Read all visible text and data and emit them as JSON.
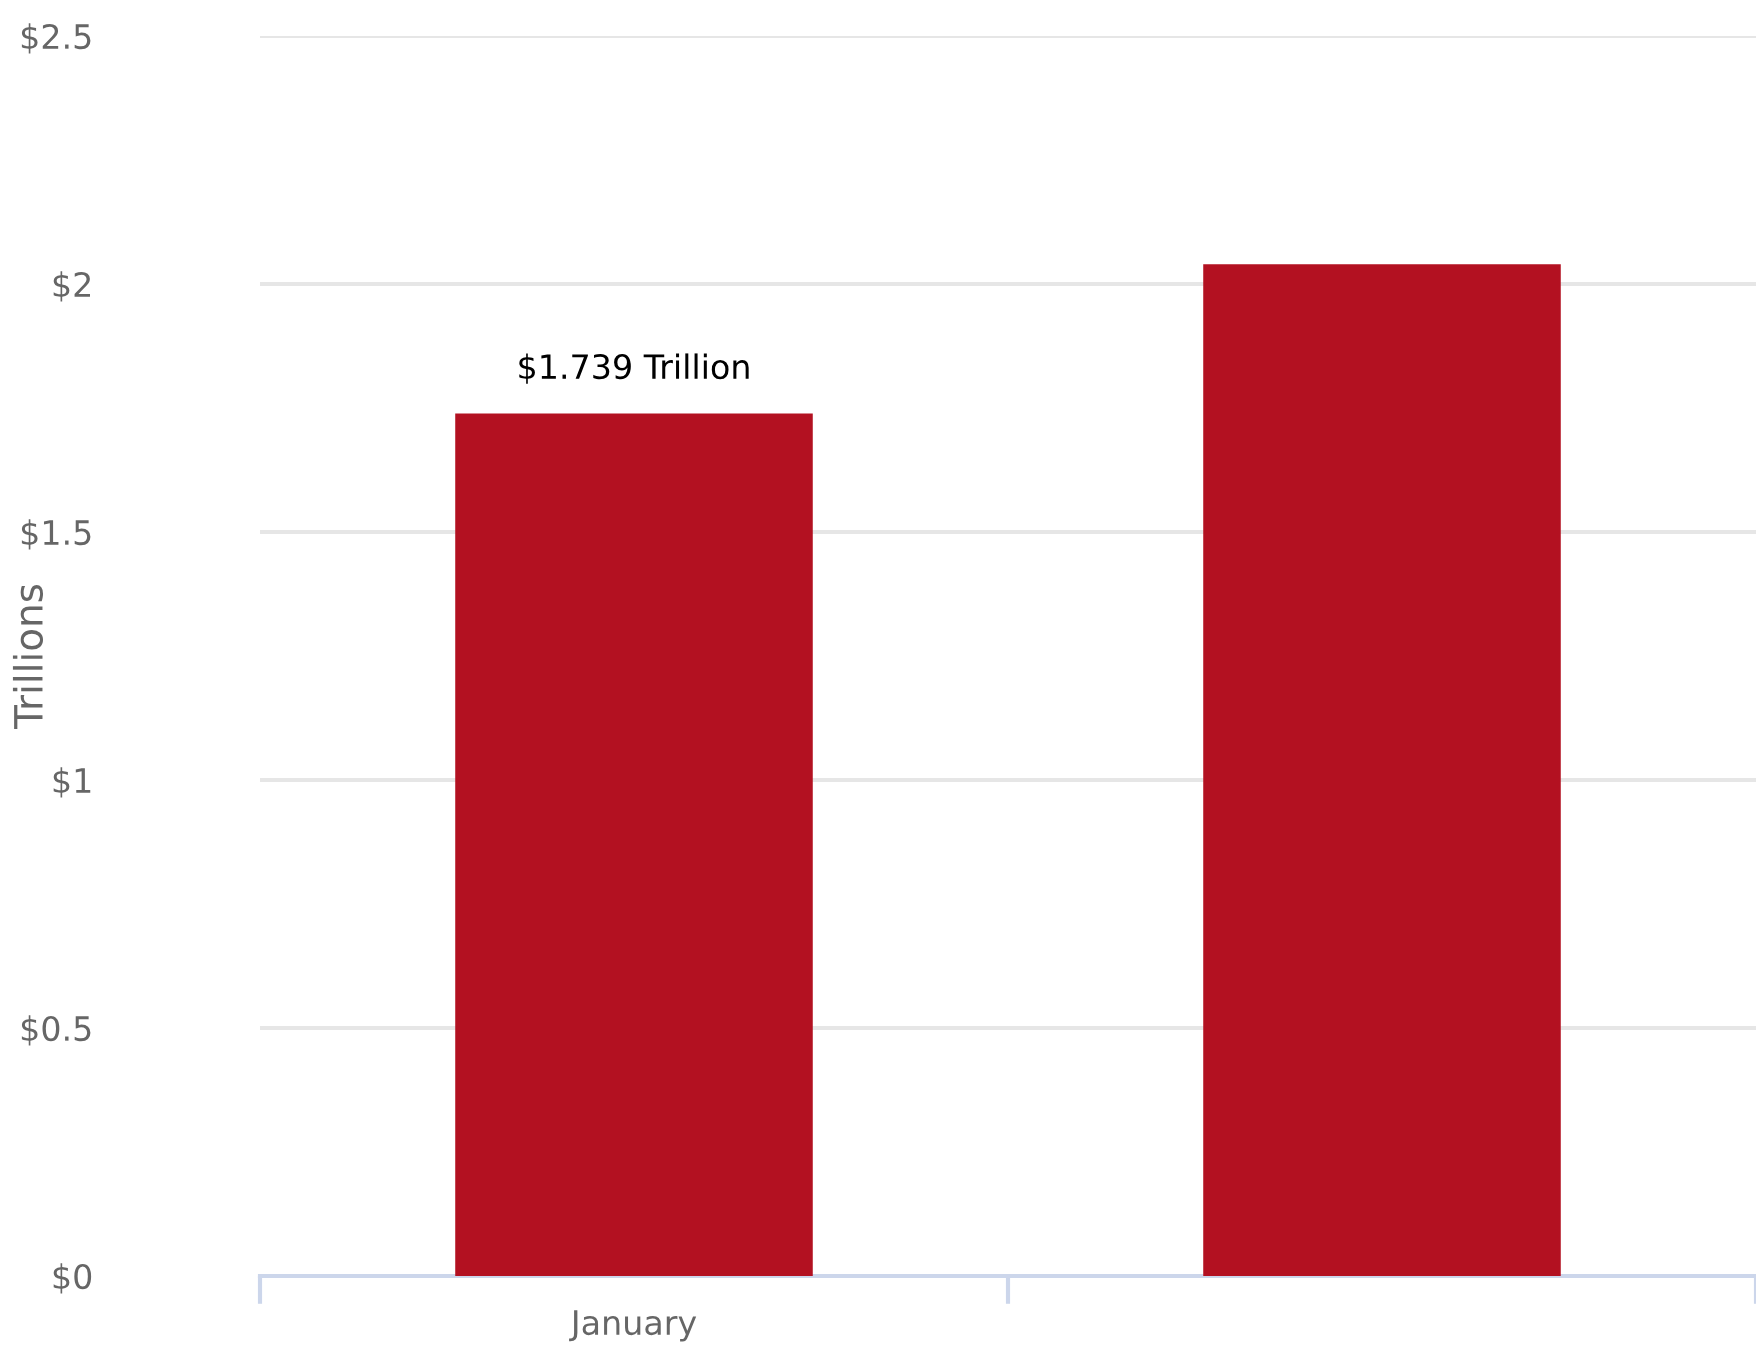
{
  "chart_data": {
    "type": "bar",
    "ylabel": "Trillions",
    "categories": [
      "January",
      null
    ],
    "values": [
      1.739,
      2.04
    ],
    "value_labels": [
      "$1.739 Trillion",
      null
    ],
    "color": "#b31121",
    "ylim": [
      0,
      2.5
    ],
    "yticks": [
      {
        "value": 0,
        "label": "$0"
      },
      {
        "value": 0.5,
        "label": "$0.5"
      },
      {
        "value": 1,
        "label": "$1"
      },
      {
        "value": 1.5,
        "label": "$1.5"
      },
      {
        "value": 2,
        "label": "$2"
      },
      {
        "value": 2.5,
        "label": "$2.5"
      }
    ],
    "grid": "y",
    "legend": false
  }
}
